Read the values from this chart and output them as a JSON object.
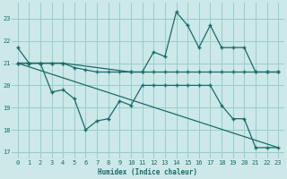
{
  "xlabel": "Humidex (Indice chaleur)",
  "bg_color": "#cce8e8",
  "grid_color": "#99cccc",
  "line_color": "#1a6b6b",
  "ylim": [
    16.7,
    23.7
  ],
  "xlim": [
    -0.5,
    23.5
  ],
  "yticks": [
    17,
    18,
    19,
    20,
    21,
    22,
    23
  ],
  "xticks": [
    0,
    1,
    2,
    3,
    4,
    5,
    6,
    7,
    8,
    9,
    10,
    11,
    12,
    13,
    14,
    15,
    16,
    17,
    18,
    19,
    20,
    21,
    22,
    23
  ],
  "series1_x": [
    0,
    1,
    2,
    3,
    4,
    10,
    11,
    12,
    13,
    14,
    15,
    16,
    17,
    18,
    19,
    20,
    21,
    22,
    23
  ],
  "series1_y": [
    21.7,
    21.0,
    21.0,
    21.0,
    21.0,
    20.6,
    20.6,
    21.5,
    21.3,
    23.3,
    22.7,
    21.7,
    22.7,
    21.7,
    21.7,
    21.7,
    20.6,
    20.6,
    20.6
  ],
  "series2_x": [
    0,
    1,
    2,
    3,
    4,
    5,
    6,
    7,
    8,
    9,
    10,
    11,
    12,
    13,
    14,
    15,
    16,
    17,
    18,
    19,
    20,
    21,
    22,
    23
  ],
  "series2_y": [
    21.0,
    21.0,
    21.0,
    21.0,
    21.0,
    20.8,
    20.7,
    20.6,
    20.6,
    20.6,
    20.6,
    20.6,
    20.6,
    20.6,
    20.6,
    20.6,
    20.6,
    20.6,
    20.6,
    20.6,
    20.6,
    20.6,
    20.6,
    20.6
  ],
  "series3_x": [
    0,
    1,
    2,
    3,
    4,
    5,
    6,
    7,
    8,
    9,
    10,
    11,
    12,
    13,
    14,
    15,
    16,
    17,
    18,
    19,
    20,
    21,
    22,
    23
  ],
  "series3_y": [
    21.0,
    21.0,
    21.0,
    19.7,
    19.8,
    19.4,
    18.0,
    18.4,
    18.5,
    19.3,
    19.1,
    20.0,
    20.0,
    20.0,
    20.0,
    20.0,
    20.0,
    20.0,
    19.1,
    18.5,
    18.5,
    17.2,
    17.2,
    17.2
  ],
  "series4_x": [
    0,
    23
  ],
  "series4_y": [
    21.0,
    17.2
  ]
}
